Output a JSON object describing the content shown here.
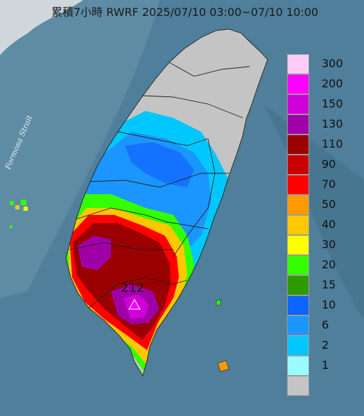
{
  "title": "累積7小時 RWRF 2025/07/10 03:00~07/10 10:00",
  "strait_label": "Formosa Strait",
  "max_value": "212",
  "legend": {
    "labels": [
      "300",
      "200",
      "150",
      "130",
      "110",
      "90",
      "70",
      "50",
      "40",
      "30",
      "20",
      "15",
      "10",
      "6",
      "2",
      "1",
      ""
    ],
    "colors": [
      "#ffccf9",
      "#ff00ff",
      "#d000d8",
      "#a000a8",
      "#9a0000",
      "#c80000",
      "#ff0000",
      "#ff9a00",
      "#ffc800",
      "#ffff00",
      "#33ff00",
      "#2e9a00",
      "#0f64ff",
      "#1c96ff",
      "#00c8ff",
      "#9afcff",
      "#c4c4c4"
    ]
  },
  "colors": {
    "sea": "#4f7f9a",
    "land_dry": "#c4c4c4"
  }
}
